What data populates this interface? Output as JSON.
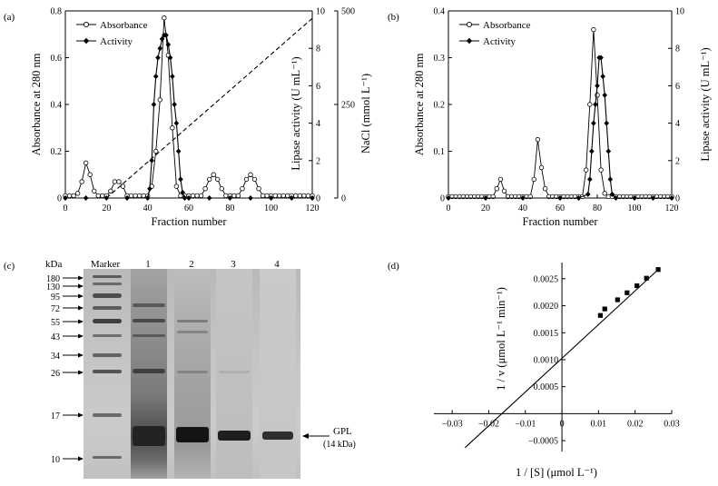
{
  "panel_a": {
    "label": "(a)",
    "y_label": "Absorbance at 280 nm",
    "x_label": "Fraction number",
    "y2_label": "Lipase activity (U mL⁻¹)",
    "y3_label": "NaCl (mmol L⁻¹)",
    "legend": [
      "Absorbance",
      "Activity"
    ]
  },
  "panel_b": {
    "label": "(b)",
    "y_label": "Absorbance at 280 nm",
    "x_label": "Fraction number",
    "y2_label": "Lipase activity (U mL⁻¹)",
    "legend": [
      "Absorbance",
      "Activity"
    ]
  },
  "panel_c": {
    "label": "(c)",
    "kda_label": "kDa",
    "marker_label": "Marker",
    "lanes": [
      "1",
      "2",
      "3",
      "4"
    ],
    "markers": [
      "180",
      "130",
      "95",
      "72",
      "55",
      "43",
      "34",
      "26",
      "17",
      "10"
    ],
    "band_label": "GPL",
    "band_sub": "(14 kDa)"
  },
  "panel_d": {
    "label": "(d)",
    "y_label": "1 / v (μmol L⁻¹ min⁻¹)",
    "x_label": "1 / [S] (μmol L⁻¹)"
  },
  "chart_data": [
    {
      "type": "line",
      "x": [
        0,
        2,
        4,
        6,
        8,
        10,
        12,
        14,
        16,
        18,
        20,
        22,
        24,
        26,
        28,
        30,
        32,
        34,
        36,
        38,
        40,
        42,
        44,
        46,
        48,
        50,
        52,
        54,
        56,
        58,
        60,
        62,
        64,
        66,
        68,
        70,
        72,
        74,
        76,
        78,
        80,
        82,
        84,
        86,
        88,
        90,
        92,
        94,
        96,
        98,
        100,
        102,
        104,
        106,
        108,
        110,
        112,
        114,
        116,
        118,
        120
      ],
      "series": [
        {
          "name": "Absorbance",
          "axis": "left",
          "values": [
            0.01,
            0.01,
            0.01,
            0.02,
            0.07,
            0.15,
            0.1,
            0.03,
            0.01,
            0.01,
            0.01,
            0.03,
            0.07,
            0.07,
            0.05,
            0.01,
            0.01,
            0.01,
            0.01,
            0.01,
            0.01,
            0.05,
            0.2,
            0.42,
            0.77,
            0.61,
            0.3,
            0.05,
            0.01,
            0.01,
            0.01,
            0.01,
            0.01,
            0.01,
            0.04,
            0.08,
            0.1,
            0.08,
            0.04,
            0.01,
            0.01,
            0.01,
            0.01,
            0.04,
            0.08,
            0.1,
            0.08,
            0.04,
            0.01,
            0.01,
            0.01,
            0.01,
            0.01,
            0.01,
            0.01,
            0.01,
            0.01,
            0.01,
            0.01,
            0.01,
            0.01
          ]
        },
        {
          "name": "Activity",
          "axis": "right",
          "x": [
            0,
            10,
            20,
            30,
            40,
            41,
            42,
            43,
            44,
            45,
            46,
            47,
            48,
            49,
            50,
            51,
            52,
            53,
            54,
            55,
            56,
            57,
            58,
            60,
            70,
            80,
            90,
            100,
            110,
            120
          ],
          "values": [
            0,
            0,
            0,
            0,
            0,
            0.5,
            2,
            5,
            6.5,
            7.5,
            8,
            8.5,
            8.7,
            8.7,
            8.2,
            7.5,
            6.5,
            5,
            4,
            2.5,
            1,
            0.3,
            0,
            0,
            0,
            0,
            0,
            0,
            0,
            0
          ]
        },
        {
          "name": "NaCl",
          "axis": "right-outer",
          "x": [
            20,
            120
          ],
          "values": [
            0,
            480
          ]
        }
      ],
      "xlim": [
        0,
        120
      ],
      "ylim": [
        0,
        0.8
      ],
      "y2lim": [
        0,
        10
      ],
      "y3lim": [
        0,
        500
      ],
      "xticks": [
        0,
        20,
        40,
        60,
        80,
        100,
        120
      ],
      "yticks": [
        0,
        0.2,
        0.4,
        0.6,
        0.8
      ],
      "y2ticks": [
        0,
        2,
        4,
        6,
        8,
        10
      ],
      "y3ticks": [
        0,
        250,
        500
      ]
    },
    {
      "type": "line",
      "x": [
        0,
        2,
        4,
        6,
        8,
        10,
        12,
        14,
        16,
        18,
        20,
        22,
        24,
        26,
        28,
        30,
        32,
        34,
        36,
        38,
        40,
        42,
        44,
        46,
        48,
        50,
        52,
        54,
        56,
        58,
        60,
        62,
        64,
        66,
        68,
        70,
        72,
        74,
        76,
        78,
        80,
        82,
        84,
        86,
        88,
        90,
        92,
        94,
        96,
        98,
        100,
        102,
        104,
        106,
        108,
        110,
        112,
        114,
        116,
        118,
        120
      ],
      "series": [
        {
          "name": "Absorbance",
          "axis": "left",
          "values": [
            0.003,
            0.003,
            0.003,
            0.003,
            0.003,
            0.003,
            0.003,
            0.003,
            0.003,
            0.003,
            0.003,
            0.003,
            0.003,
            0.02,
            0.04,
            0.015,
            0.003,
            0.003,
            0.003,
            0.003,
            0.003,
            0.003,
            0.003,
            0.04,
            0.125,
            0.065,
            0.02,
            0.003,
            0.003,
            0.003,
            0.003,
            0.003,
            0.003,
            0.003,
            0.003,
            0.003,
            0.003,
            0.06,
            0.2,
            0.36,
            0.22,
            0.06,
            0.01,
            0.003,
            0.003,
            0.003,
            0.003,
            0.003,
            0.003,
            0.003,
            0.003,
            0.003,
            0.003,
            0.003,
            0.003,
            0.003,
            0.003,
            0.003,
            0.003,
            0.003,
            0.003
          ]
        },
        {
          "name": "Activity",
          "axis": "right",
          "x": [
            0,
            20,
            40,
            60,
            70,
            75,
            76,
            77,
            78,
            79,
            80,
            81,
            82,
            83,
            84,
            85,
            86,
            87,
            88,
            90,
            100,
            110,
            120
          ],
          "values": [
            0,
            0,
            0,
            0,
            0,
            0.2,
            1,
            2.5,
            4,
            5,
            6,
            7.5,
            7.5,
            6.5,
            5.5,
            4,
            2.5,
            1,
            0.2,
            0,
            0,
            0,
            0
          ]
        }
      ],
      "xlim": [
        0,
        120
      ],
      "ylim": [
        0,
        0.4
      ],
      "y2lim": [
        0,
        10
      ],
      "xticks": [
        0,
        20,
        40,
        60,
        80,
        100,
        120
      ],
      "yticks": [
        0,
        0.1,
        0.2,
        0.3,
        0.4
      ],
      "y2ticks": [
        0,
        2,
        4,
        6,
        8,
        10
      ]
    },
    {
      "type": "scatter",
      "x": [
        0.0105,
        0.0117,
        0.0152,
        0.0178,
        0.0205,
        0.0231,
        0.0263
      ],
      "values": [
        0.00182,
        0.00194,
        0.00211,
        0.00224,
        0.00237,
        0.00251,
        0.00267
      ],
      "fit": {
        "x": [
          -0.0265,
          0.0263
        ],
        "values": [
          -0.00063,
          0.00267
        ]
      },
      "xlim": [
        -0.035,
        0.03
      ],
      "ylim": [
        -0.0007,
        0.0028
      ],
      "xticks": [
        -0.03,
        -0.02,
        -0.01,
        0,
        0.01,
        0.02,
        0.03
      ],
      "xtick_labels": [
        "−0.03",
        "−0.02",
        "−0.01",
        "0",
        "0.01",
        "0.02",
        "0.03"
      ],
      "yticks": [
        -0.0005,
        0,
        0.0005,
        0.001,
        0.0015,
        0.002,
        0.0025
      ],
      "ytick_labels": [
        "−0.0005",
        "0",
        "0.0005",
        "0.0010",
        "0.0015",
        "0.0020",
        "0.0025"
      ]
    }
  ]
}
